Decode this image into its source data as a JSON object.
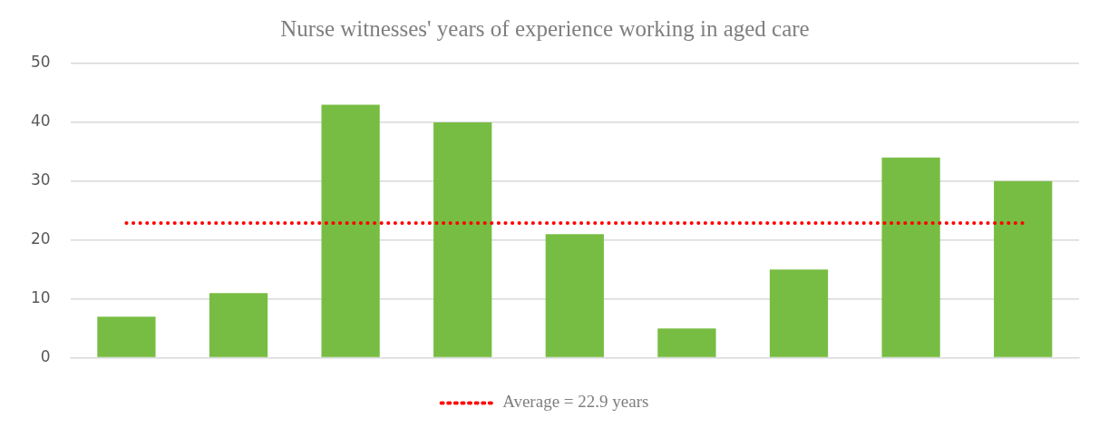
{
  "chart_data": {
    "type": "bar",
    "title": "Nurse witnesses' years of experience working in aged care",
    "categories": [
      null,
      null,
      null,
      null,
      null,
      null,
      null,
      null,
      null
    ],
    "series": [
      {
        "color": "#77bd43",
        "values": [
          7,
          11,
          43,
          40,
          21,
          5,
          15,
          34,
          30
        ]
      },
      {
        "type": "line",
        "name": "Average = 22.9 years",
        "color": "#ff0000",
        "line_style": "dotted",
        "marker": "none",
        "values": [
          22.9,
          22.9,
          22.9,
          22.9,
          22.9,
          22.9,
          22.9,
          22.9,
          22.9
        ]
      }
    ],
    "ylim": [
      0,
      50
    ],
    "yticks": [
      0,
      10,
      20,
      30,
      40,
      50
    ],
    "grid": "y",
    "legend": "bottom"
  }
}
